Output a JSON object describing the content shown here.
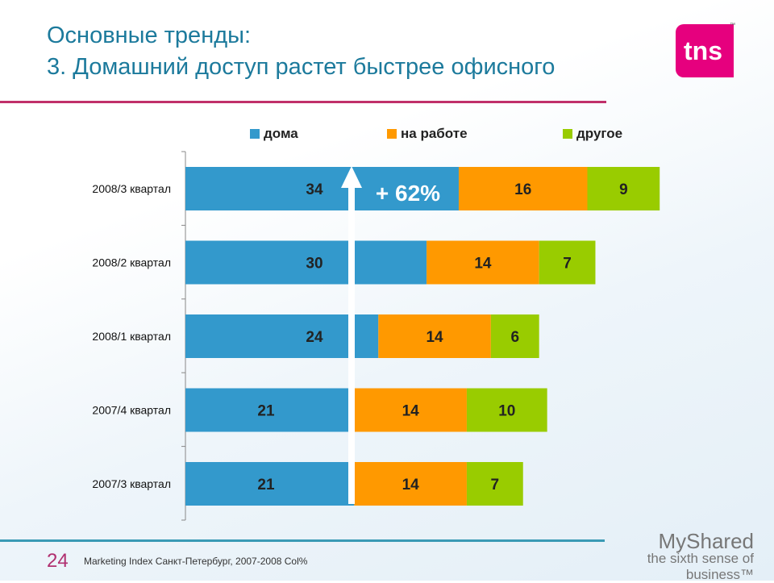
{
  "header": {
    "title_line1": "Основные тренды:",
    "title_line2": "3. Домашний доступ растет быстрее офисного",
    "logo": "tns",
    "logo_tm": "™"
  },
  "footer": {
    "page_number": "24",
    "source": "Marketing Index Санкт-Петербург, 2007-2008  Col%",
    "watermark": "MyShared",
    "watermark_tagline": "the sixth sense of business™"
  },
  "chart_data": {
    "type": "bar",
    "orientation": "horizontal",
    "stacked": true,
    "categories": [
      "2008/3 квартал",
      "2008/2 квартал",
      "2008/1 квартал",
      "2007/4 квартал",
      "2007/3 квартал"
    ],
    "series": [
      {
        "name": "дома",
        "color": "#3399cc",
        "values": [
          34,
          30,
          24,
          21,
          21
        ]
      },
      {
        "name": "на работе",
        "color": "#ff9900",
        "values": [
          16,
          14,
          14,
          14,
          14
        ]
      },
      {
        "name": "другое",
        "color": "#99cc00",
        "values": [
          9,
          7,
          6,
          10,
          7
        ]
      }
    ],
    "annotation": "+ 62%",
    "legend_position": "top",
    "grid": false
  }
}
